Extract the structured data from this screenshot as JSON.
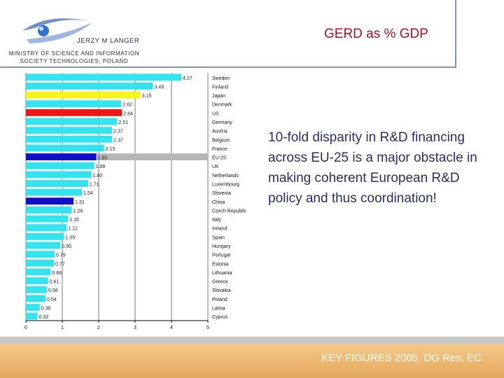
{
  "header": {
    "author": "JERZY M LANGER",
    "ministry": "MINISTRY OF SCIENCE AND INFORMATION SOCIETY TECHNOLOGIES, POLAND",
    "title": "GERD as % GDP"
  },
  "message": "10-fold disparity in R&D financing across EU-25 is a major obstacle in making coherent European R&D policy and thus coordination!",
  "footer": {
    "text": "KEY FIGURES 2005, DG Res, EC"
  },
  "chart_data": {
    "type": "bar",
    "orientation": "horizontal",
    "title": "GERD as % GDP",
    "xlim": [
      0,
      5
    ],
    "xticks": [
      "0",
      "1",
      "2",
      "3",
      "4",
      "5"
    ],
    "categories": [
      "Sweden",
      "Finland",
      "Japan",
      "Denmark",
      "US",
      "Germany",
      "Austria",
      "Belgium",
      "France",
      "EU-25",
      "UK",
      "Netherlands",
      "Luxembourg",
      "Slovenia",
      "China",
      "Czech Republic",
      "Italy",
      "Ireland",
      "Spain",
      "Hungary",
      "Portugal",
      "Estonia",
      "Lithuania",
      "Greece",
      "Slovakia",
      "Poland",
      "Latvia",
      "Cyprus"
    ],
    "values": [
      4.27,
      3.49,
      3.15,
      2.62,
      2.64,
      2.51,
      2.37,
      2.37,
      2.15,
      1.93,
      1.88,
      1.8,
      1.71,
      1.54,
      1.31,
      1.26,
      1.16,
      1.12,
      1.05,
      0.95,
      0.79,
      0.77,
      0.68,
      0.61,
      0.58,
      0.54,
      0.38,
      0.32
    ],
    "value_labels": [
      "4.27",
      "3.49",
      "3.15",
      "2.62",
      "2.64",
      "2.51",
      "2.37",
      "2.37",
      "2.15",
      "1.93",
      "1.88",
      "1.80",
      "1.71",
      "1.54",
      "1.31",
      "1.26",
      "1.16",
      "1.12",
      "1.05",
      "0.95",
      "0.79",
      "0.77",
      "0.68",
      "0.61",
      "0.58",
      "0.54",
      "0.38",
      "0.32"
    ],
    "colors": {
      "default": "#33e3f0",
      "Japan": "#f5f51c",
      "US": "#f01616",
      "EU-25": "#1010c8",
      "China": "#1010c8",
      "eu_band": "#b5b5b5",
      "grid": "#222222"
    }
  }
}
